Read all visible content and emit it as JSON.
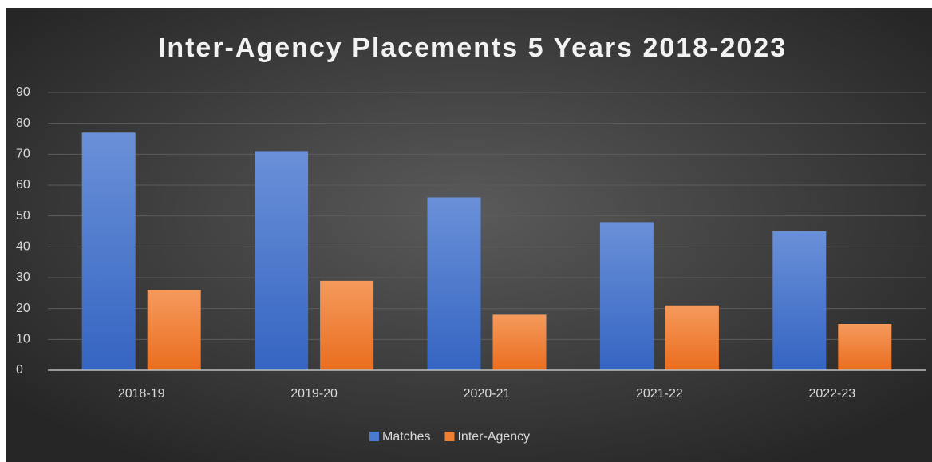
{
  "chart_data": {
    "type": "bar",
    "title": "Inter-Agency Placements 5 Years 2018-2023",
    "categories": [
      "2018-19",
      "2019-20",
      "2020-21",
      "2021-22",
      "2022-23"
    ],
    "series": [
      {
        "name": "Matches",
        "color": "#4a7bd0",
        "values": [
          77,
          71,
          56,
          48,
          45
        ]
      },
      {
        "name": "Inter-Agency",
        "color": "#f07f34",
        "values": [
          26,
          29,
          18,
          21,
          15
        ]
      }
    ],
    "ylim": [
      0,
      90
    ],
    "yticks": [
      0,
      10,
      20,
      30,
      40,
      50,
      60,
      70,
      80,
      90
    ],
    "grid": true,
    "legend": "bottom"
  }
}
